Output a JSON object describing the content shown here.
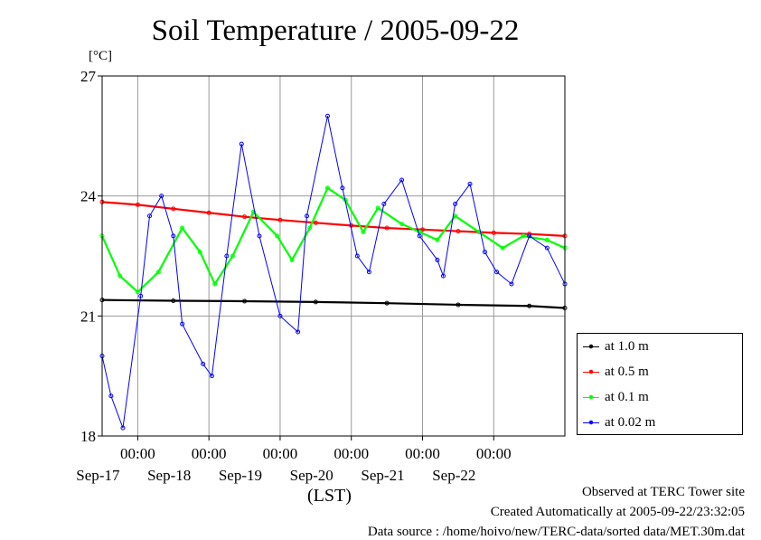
{
  "title": "Soil Temperature / 2005-09-22",
  "chart_data": {
    "type": "line",
    "ylabel": "[°C]",
    "xlabel": "(LST)",
    "ylim": [
      18,
      27
    ],
    "yticks": [
      "18",
      "21",
      "24",
      "27"
    ],
    "xrange": [
      "2005-09-16T12:00",
      "2005-09-22T23:59"
    ],
    "xticks": [
      {
        "time": "00:00",
        "date": "Sep-17"
      },
      {
        "time": "00:00",
        "date": "Sep-18"
      },
      {
        "time": "00:00",
        "date": "Sep-19"
      },
      {
        "time": "00:00",
        "date": "Sep-20"
      },
      {
        "time": "00:00",
        "date": "Sep-21"
      },
      {
        "time": "00:00",
        "date": "Sep-22"
      }
    ],
    "grid": true,
    "legend_position": "right",
    "series": [
      {
        "name": "at 1.0 m",
        "color": "#000000",
        "x": [
          "2005-09-16T12:00",
          "2005-09-17T12:00",
          "2005-09-18T12:00",
          "2005-09-19T12:00",
          "2005-09-20T12:00",
          "2005-09-21T12:00",
          "2005-09-22T12:00",
          "2005-09-22T23:59"
        ],
        "y": [
          21.4,
          21.38,
          21.37,
          21.35,
          21.32,
          21.28,
          21.25,
          21.2
        ]
      },
      {
        "name": "at 0.5 m",
        "color": "#ff0000",
        "x": [
          "2005-09-16T12:00",
          "2005-09-17T00:00",
          "2005-09-17T12:00",
          "2005-09-18T00:00",
          "2005-09-18T12:00",
          "2005-09-19T00:00",
          "2005-09-19T12:00",
          "2005-09-20T00:00",
          "2005-09-20T12:00",
          "2005-09-21T00:00",
          "2005-09-21T12:00",
          "2005-09-22T00:00",
          "2005-09-22T12:00",
          "2005-09-22T23:59"
        ],
        "y": [
          23.85,
          23.78,
          23.68,
          23.58,
          23.48,
          23.4,
          23.33,
          23.26,
          23.2,
          23.16,
          23.12,
          23.08,
          23.05,
          23.0
        ]
      },
      {
        "name": "at 0.1 m",
        "color": "#00ff00",
        "x": [
          "2005-09-16T12:00",
          "2005-09-16T18:00",
          "2005-09-17T00:00",
          "2005-09-17T07:00",
          "2005-09-17T15:00",
          "2005-09-17T21:00",
          "2005-09-18T02:00",
          "2005-09-18T08:00",
          "2005-09-18T15:00",
          "2005-09-18T23:00",
          "2005-09-19T04:00",
          "2005-09-19T10:00",
          "2005-09-19T16:00",
          "2005-09-19T22:00",
          "2005-09-20T04:00",
          "2005-09-20T09:00",
          "2005-09-20T17:00",
          "2005-09-20T23:00",
          "2005-09-21T05:00",
          "2005-09-21T11:00",
          "2005-09-21T19:00",
          "2005-09-22T03:00",
          "2005-09-22T10:00",
          "2005-09-22T18:00",
          "2005-09-22T23:59"
        ],
        "y": [
          23.0,
          22.0,
          21.6,
          22.1,
          23.2,
          22.6,
          21.8,
          22.5,
          23.6,
          23.0,
          22.4,
          23.2,
          24.2,
          23.9,
          23.1,
          23.7,
          23.3,
          23.1,
          22.9,
          23.5,
          23.1,
          22.7,
          23.0,
          22.9,
          22.7
        ]
      },
      {
        "name": "at 0.02 m",
        "color": "#0000ff",
        "x": [
          "2005-09-16T12:00",
          "2005-09-16T15:00",
          "2005-09-16T19:00",
          "2005-09-17T01:00",
          "2005-09-17T04:00",
          "2005-09-17T08:00",
          "2005-09-17T12:00",
          "2005-09-17T15:00",
          "2005-09-17T22:00",
          "2005-09-18T01:00",
          "2005-09-18T06:00",
          "2005-09-18T11:00",
          "2005-09-18T17:00",
          "2005-09-19T00:00",
          "2005-09-19T06:00",
          "2005-09-19T09:00",
          "2005-09-19T16:00",
          "2005-09-19T21:00",
          "2005-09-20T02:00",
          "2005-09-20T06:00",
          "2005-09-20T11:00",
          "2005-09-20T17:00",
          "2005-09-20T23:00",
          "2005-09-21T05:00",
          "2005-09-21T07:00",
          "2005-09-21T11:00",
          "2005-09-21T16:00",
          "2005-09-21T21:00",
          "2005-09-22T01:00",
          "2005-09-22T06:00",
          "2005-09-22T12:00",
          "2005-09-22T18:00",
          "2005-09-22T23:59"
        ],
        "y": [
          20.0,
          19.0,
          18.2,
          21.5,
          23.5,
          24.0,
          23.0,
          20.8,
          19.8,
          19.5,
          22.5,
          25.3,
          23.0,
          21.0,
          20.6,
          23.5,
          26.0,
          24.2,
          22.5,
          22.1,
          23.8,
          24.4,
          23.0,
          22.4,
          22.0,
          23.8,
          24.3,
          22.6,
          22.1,
          21.8,
          23.0,
          22.7,
          21.8
        ]
      }
    ]
  },
  "footer": {
    "observed": "Observed at TERC Tower site",
    "created": "Created Automatically at 2005-09-22/23:32:05",
    "source": "Data source : /home/hoivo/new/TERC-data/sorted  data/MET.30m.dat"
  }
}
